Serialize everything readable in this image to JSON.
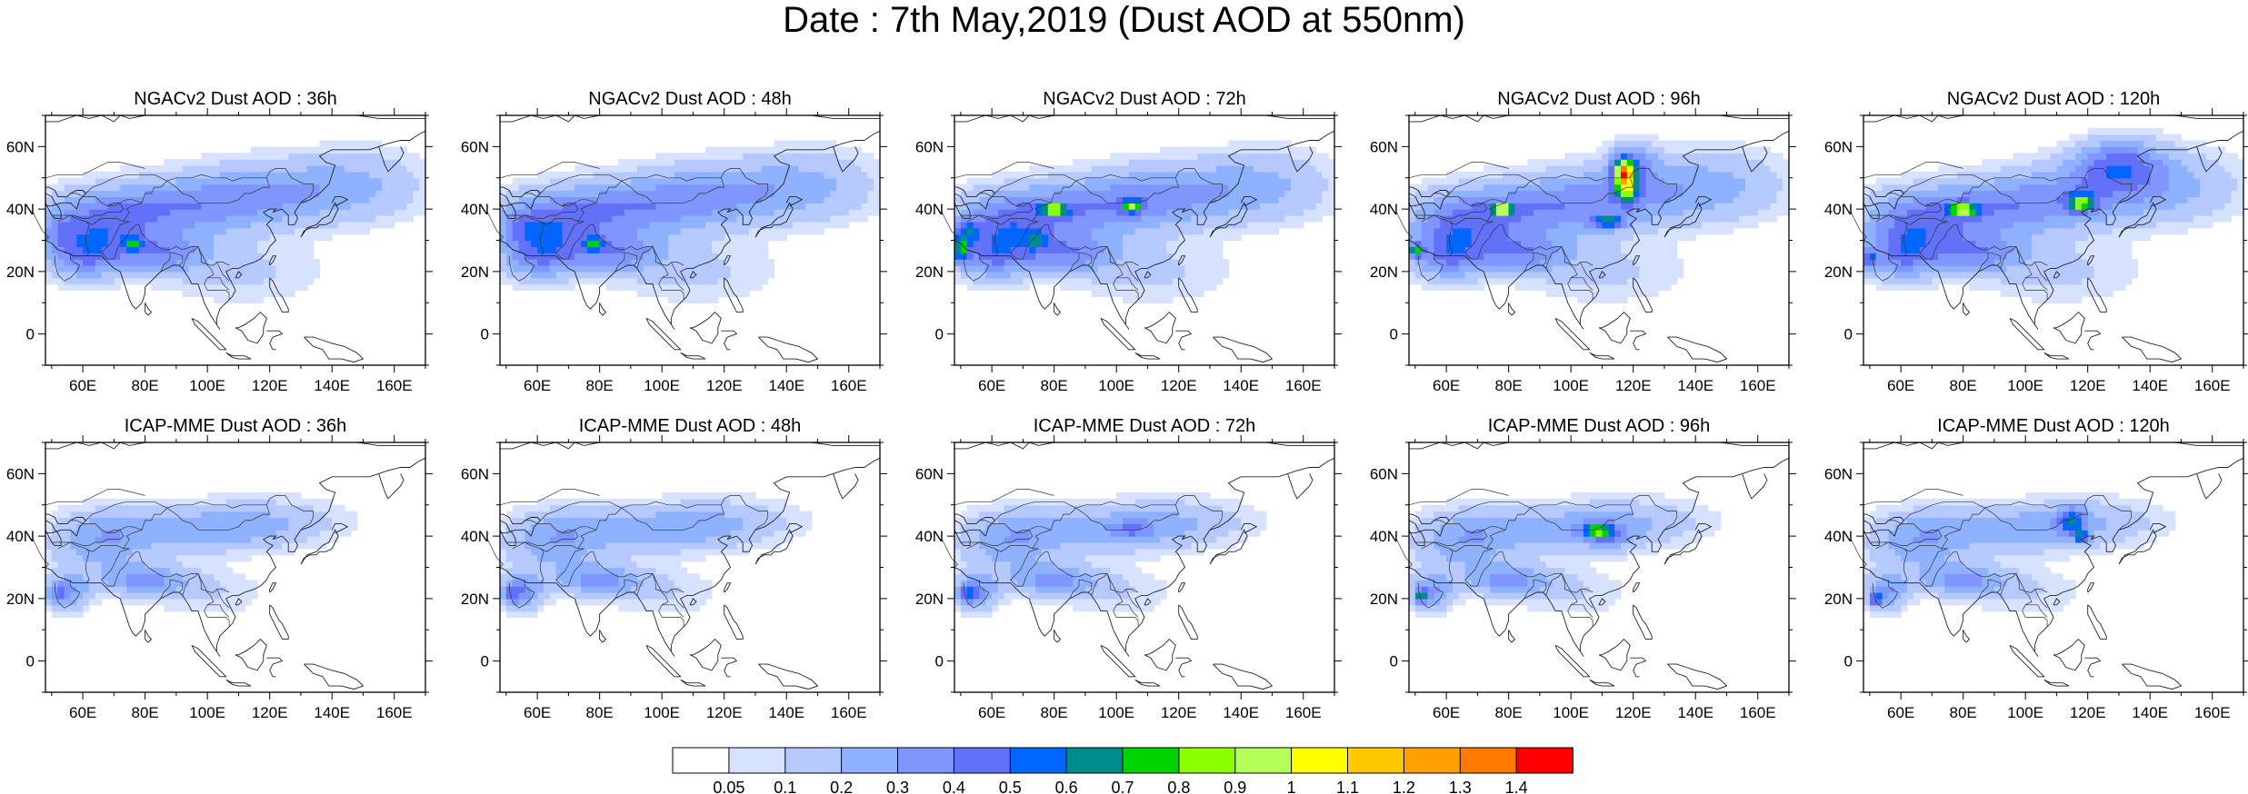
{
  "title": "Date : 7th May,2019 (Dust AOD at 550nm)",
  "panels": [
    {
      "id": "ngac-36",
      "title": "NGACv2 Dust AOD : 36h",
      "model": "ngac",
      "lead": 0
    },
    {
      "id": "ngac-48",
      "title": "NGACv2 Dust AOD : 48h",
      "model": "ngac",
      "lead": 1
    },
    {
      "id": "ngac-72",
      "title": "NGACv2 Dust AOD : 72h",
      "model": "ngac",
      "lead": 2
    },
    {
      "id": "ngac-96",
      "title": "NGACv2 Dust AOD : 96h",
      "model": "ngac",
      "lead": 3
    },
    {
      "id": "ngac-120",
      "title": "NGACv2 Dust AOD : 120h",
      "model": "ngac",
      "lead": 4
    },
    {
      "id": "icap-36",
      "title": "ICAP-MME Dust AOD : 36h",
      "model": "icap",
      "lead": 0
    },
    {
      "id": "icap-48",
      "title": "ICAP-MME Dust AOD : 48h",
      "model": "icap",
      "lead": 1
    },
    {
      "id": "icap-72",
      "title": "ICAP-MME Dust AOD : 72h",
      "model": "icap",
      "lead": 2
    },
    {
      "id": "icap-96",
      "title": "ICAP-MME Dust AOD : 96h",
      "model": "icap",
      "lead": 3
    },
    {
      "id": "icap-120",
      "title": "ICAP-MME Dust AOD : 120h",
      "model": "icap",
      "lead": 4
    }
  ],
  "lon_ticks": [
    "60E",
    "80E",
    "100E",
    "120E",
    "140E",
    "160E"
  ],
  "lat_ticks": [
    "60N",
    "40N",
    "20N",
    "0"
  ],
  "lon_range": [
    48,
    170
  ],
  "lat_range": [
    -10,
    70
  ],
  "colorbar": {
    "colors": [
      "#ffffff",
      "#d6e2ff",
      "#b5c9ff",
      "#8eb2ff",
      "#7f96ff",
      "#6370f8",
      "#0066ff",
      "#008c8c",
      "#00d200",
      "#8cff00",
      "#b4ff5a",
      "#ffff00",
      "#ffc800",
      "#ffa000",
      "#ff7800",
      "#ff0000"
    ],
    "labels": [
      "0.05",
      "0.1",
      "0.2",
      "0.3",
      "0.4",
      "0.5",
      "0.6",
      "0.7",
      "0.8",
      "0.9",
      "1",
      "1.1",
      "1.2",
      "1.3",
      "1.4"
    ],
    "levels": [
      0.05,
      0.1,
      0.2,
      0.3,
      0.4,
      0.5,
      0.6,
      0.7,
      0.8,
      0.9,
      1,
      1.1,
      1.2,
      1.3,
      1.4
    ]
  }
}
